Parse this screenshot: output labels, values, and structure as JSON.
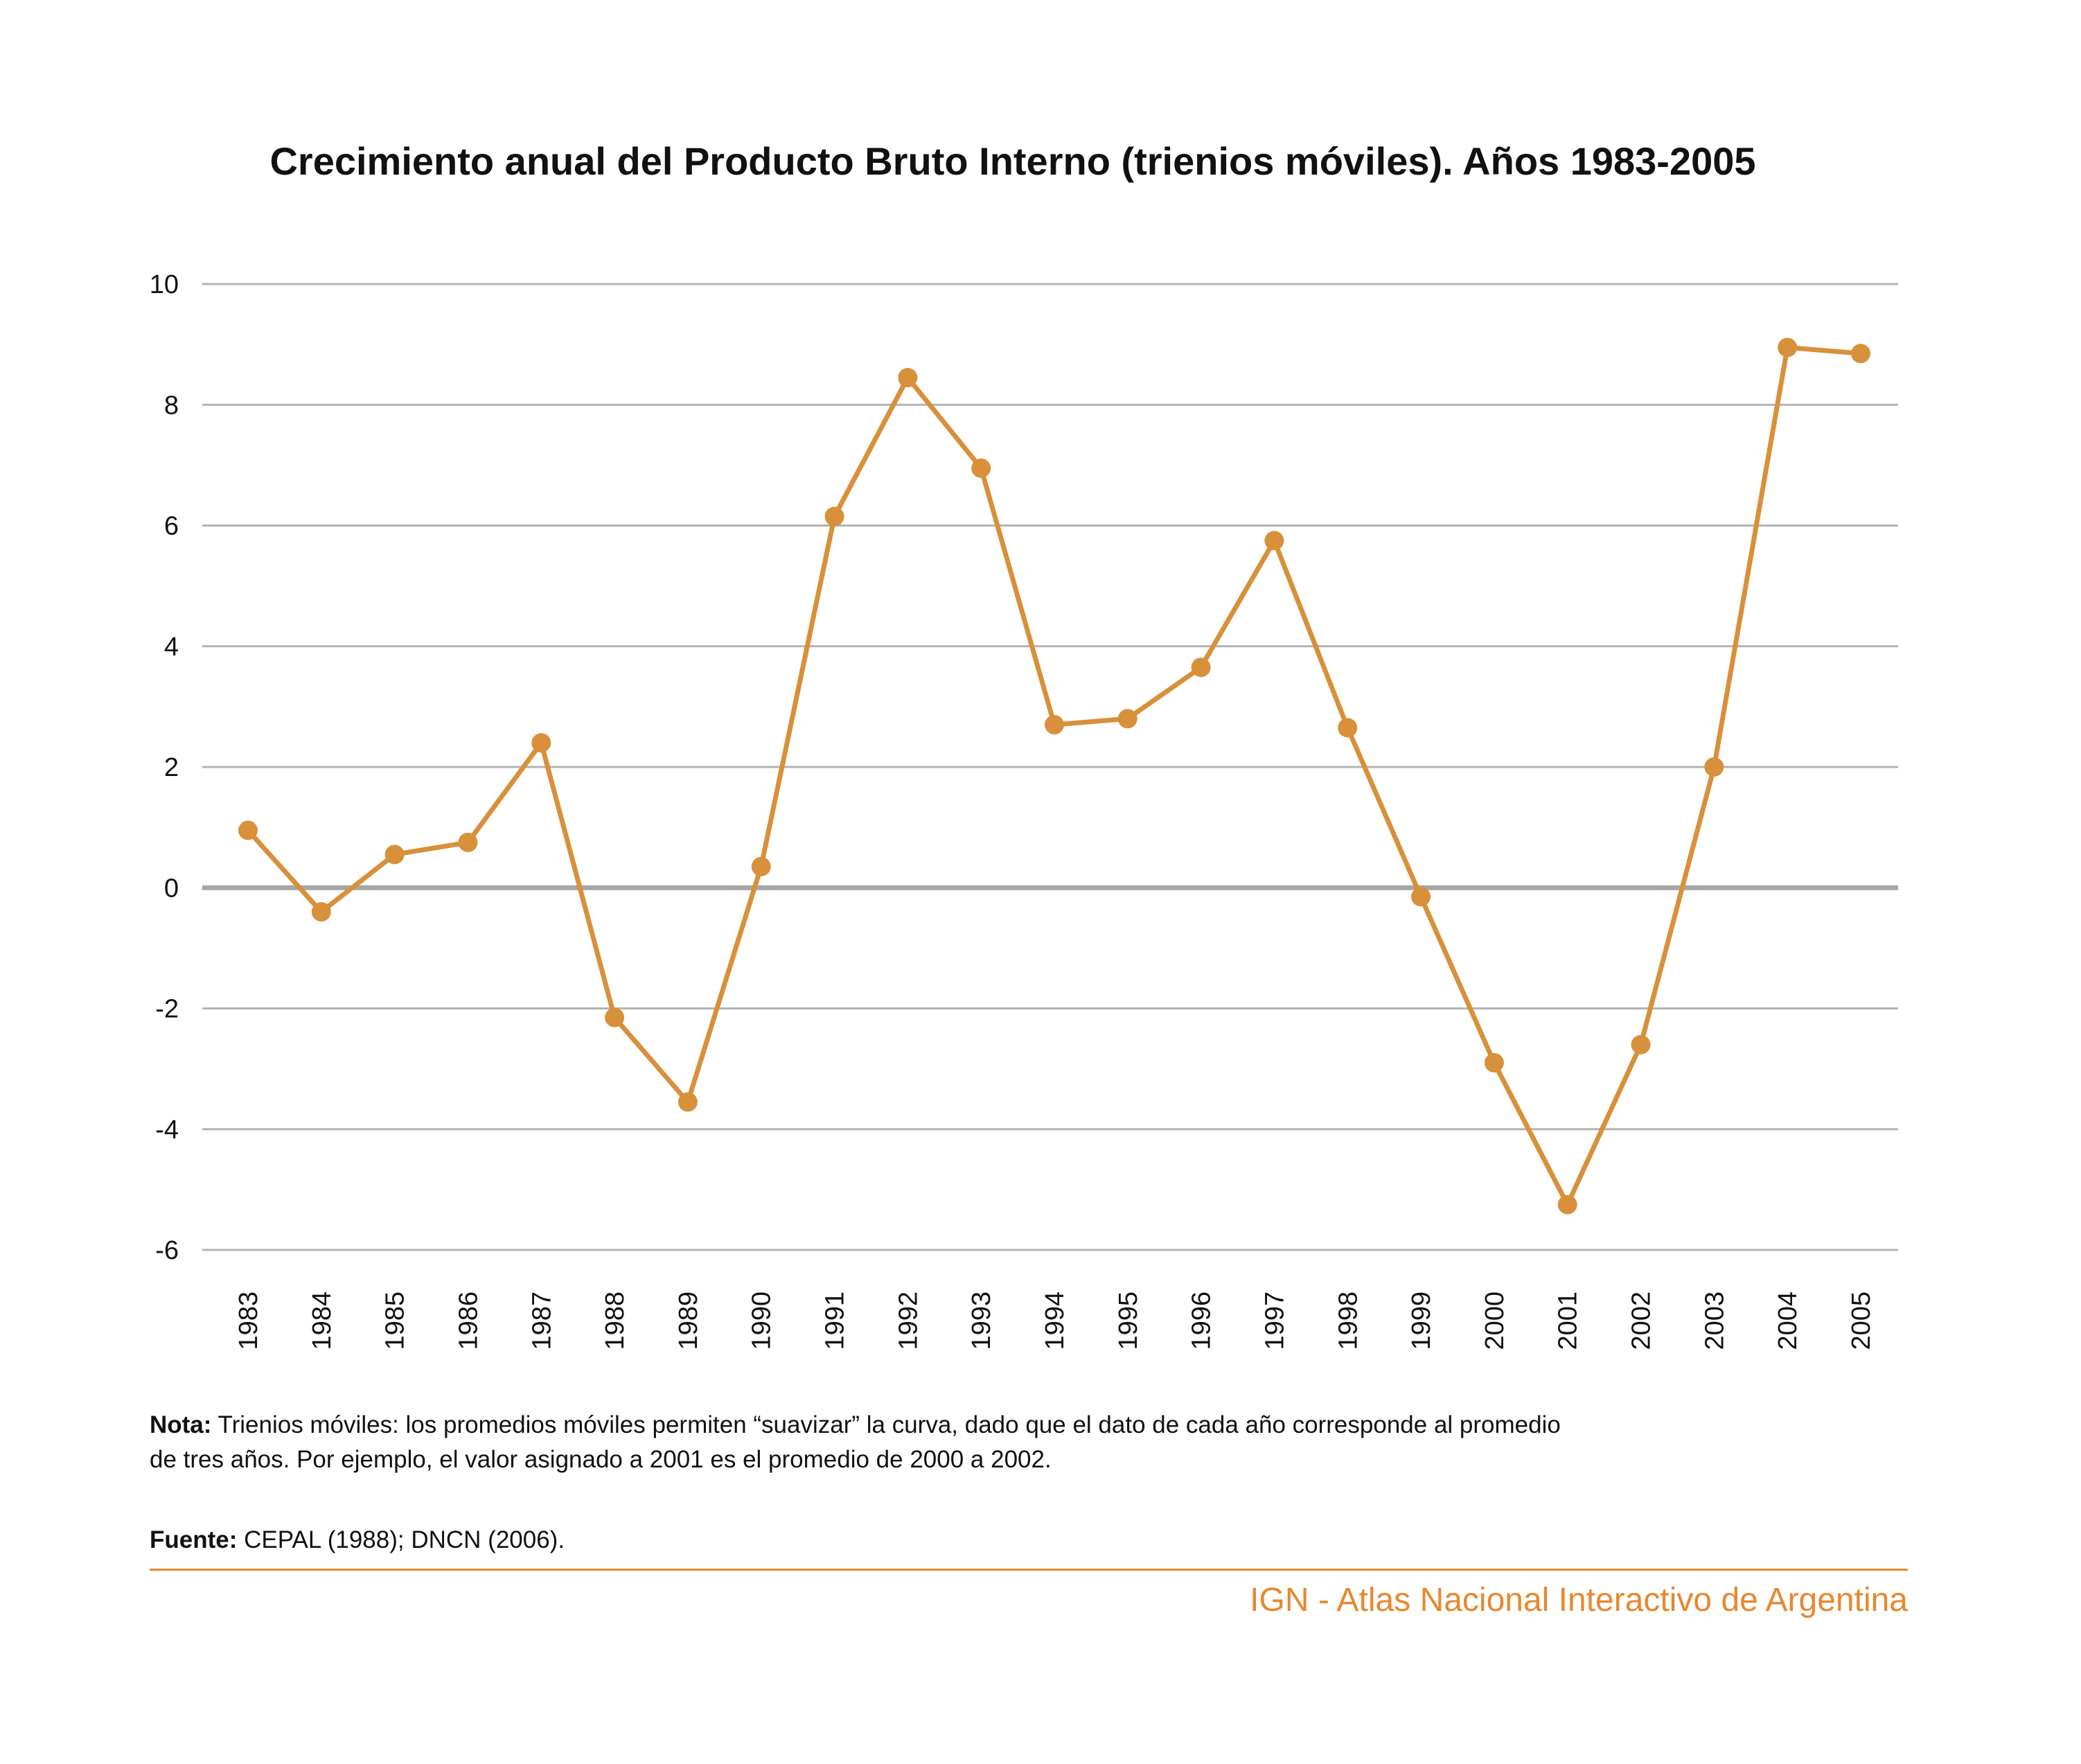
{
  "chart_data": {
    "type": "line",
    "title": "Crecimiento anual del Producto Bruto Interno (trienios móviles). Años 1983-2005",
    "xlabel": "",
    "ylabel": "",
    "ylim": [
      -6,
      10
    ],
    "yticks": [
      "10",
      "8",
      "6",
      "4",
      "2",
      "0",
      "-2",
      "-4",
      "-6"
    ],
    "grid": true,
    "legend": "none",
    "line_color": "#d9903a",
    "grid_color": "#b3b3b3",
    "zero_line_color": "#a6a6a6",
    "categories": [
      "1983",
      "1984",
      "1985",
      "1986",
      "1987",
      "1988",
      "1989",
      "1990",
      "1991",
      "1992",
      "1993",
      "1994",
      "1995",
      "1996",
      "1997",
      "1998",
      "1999",
      "2000",
      "2001",
      "2002",
      "2003",
      "2004",
      "2005"
    ],
    "series": [
      {
        "values": [
          0.95,
          -0.4,
          0.55,
          0.75,
          2.4,
          -2.15,
          -3.55,
          0.35,
          6.15,
          8.45,
          6.95,
          2.7,
          2.8,
          3.65,
          5.75,
          2.65,
          -0.15,
          -2.9,
          -5.25,
          -2.6,
          2.0,
          8.95,
          8.85
        ]
      }
    ]
  },
  "note": {
    "label": "Nota:",
    "line1": " Trienios móviles: los promedios móviles permiten “suavizar” la curva, dado que el dato de cada año corresponde al promedio",
    "line2": "de tres años. Por ejemplo, el valor asignado a 2001 es el promedio de 2000 a 2002."
  },
  "source": {
    "label": "Fuente:",
    "text": " CEPAL (1988); DNCN (2006)."
  },
  "footer": {
    "credit": "IGN - Atlas Nacional Interactivo de Argentina",
    "accent_color": "#e8882e"
  }
}
